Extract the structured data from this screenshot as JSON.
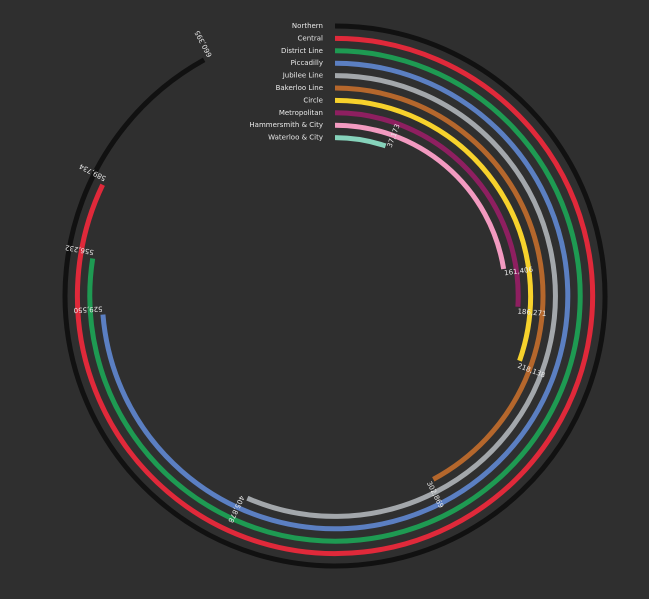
{
  "chart_data": {
    "type": "radial_bar",
    "categories": [
      "Northern",
      "Central",
      "District Line",
      "Piccadilly",
      "Jubilee Line",
      "Bakerloo Line",
      "Circle",
      "Metropolitan",
      "Hammersmith & City",
      "Waterloo & City"
    ],
    "values": [
      660395,
      589734,
      556232,
      529550,
      405878,
      302869,
      218138,
      186271,
      161406,
      37173
    ],
    "value_labels": [
      "660,395",
      "589,734",
      "556,232",
      "529,550",
      "405,878",
      "302,869",
      "218,138",
      "186,271",
      "161,406",
      "37,173"
    ],
    "colors": [
      "#111111",
      "#e0293a",
      "#1e9a52",
      "#5b7fc2",
      "#a3a7ab",
      "#b5672c",
      "#f7d22c",
      "#8e1f60",
      "#f29ac0",
      "#86d3bb"
    ]
  }
}
